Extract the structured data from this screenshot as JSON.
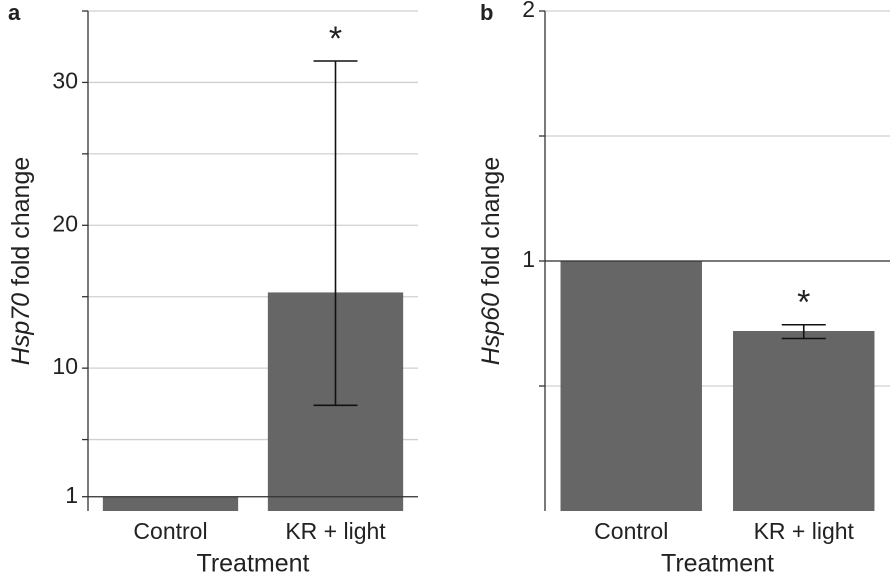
{
  "chart_data": [
    {
      "type": "bar",
      "panel": "a",
      "ylabel_gene": "Hsp70",
      "ylabel_rest": " fold change",
      "xlabel": "Treatment",
      "categories": [
        "Control",
        "KR + light"
      ],
      "values": [
        1,
        15.3
      ],
      "error_low": [
        null,
        7.4
      ],
      "error_high": [
        null,
        31.5
      ],
      "significance": [
        null,
        "*"
      ],
      "color": "#666666",
      "ylim": [
        0,
        35
      ],
      "yticks": [
        1,
        10,
        20,
        30
      ],
      "minor_yticks": [
        5,
        15,
        25,
        35
      ],
      "reference_line": 1,
      "grid": true
    },
    {
      "type": "bar",
      "panel": "b",
      "ylabel_gene": "Hsp60",
      "ylabel_rest": " fold change",
      "xlabel": "Treatment",
      "categories": [
        "Control",
        "KR + light"
      ],
      "values": [
        1,
        0.72
      ],
      "error_low": [
        null,
        0.69
      ],
      "error_high": [
        null,
        0.745
      ],
      "significance": [
        null,
        "*"
      ],
      "color": "#666666",
      "ylim": [
        0,
        2
      ],
      "yticks": [
        1,
        2
      ],
      "minor_yticks": [
        0.5,
        1.5
      ],
      "reference_line": 1,
      "grid": true
    }
  ]
}
